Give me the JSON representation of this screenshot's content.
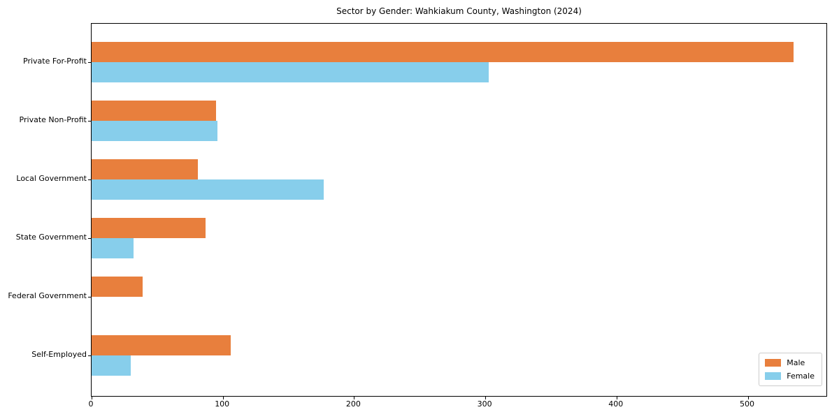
{
  "title": "Sector by Gender: Wahkiakum County, Washington (2024)",
  "colors": {
    "male": "#e87f3d",
    "female": "#87ceeb",
    "axis": "#000000",
    "legend_border": "#cccccc",
    "background": "#ffffff"
  },
  "legend": {
    "position": "lower right",
    "entries": [
      {
        "label": "Male",
        "color": "#e87f3d"
      },
      {
        "label": "Female",
        "color": "#87ceeb"
      }
    ]
  },
  "chart_data": {
    "type": "bar",
    "orientation": "horizontal",
    "title": "Sector by Gender: Wahkiakum County, Washington (2024)",
    "categories": [
      "Private For-Profit",
      "Private Non-Profit",
      "Local Government",
      "State Government",
      "Federal Government",
      "Self-Employed"
    ],
    "series": [
      {
        "name": "Male",
        "color": "#e87f3d",
        "values": [
          536,
          95,
          81,
          87,
          39,
          106
        ]
      },
      {
        "name": "Female",
        "color": "#87ceeb",
        "values": [
          303,
          96,
          177,
          32,
          0,
          30
        ]
      }
    ],
    "x_ticks": [
      0,
      100,
      200,
      300,
      400,
      500
    ],
    "xlim": [
      0,
      561
    ],
    "xlabel": "",
    "ylabel": "",
    "grid": false,
    "legend_position": "lower right"
  }
}
